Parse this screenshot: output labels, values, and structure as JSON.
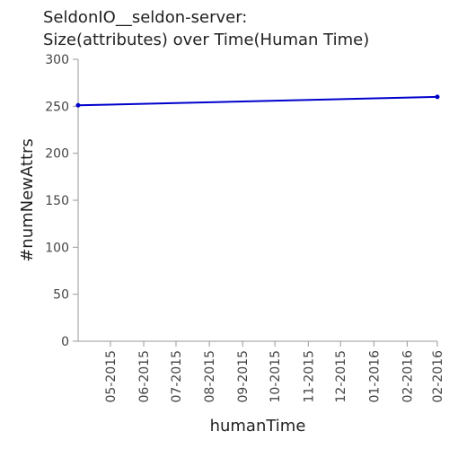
{
  "chart_data": {
    "type": "line",
    "title_lines": [
      "SeldonIO__seldon-server:",
      "Size(attributes) over Time(Human Time)"
    ],
    "xlabel": "humanTime",
    "ylabel": "#numNewAttrs",
    "ylim": [
      0,
      300
    ],
    "yticks": [
      0,
      50,
      100,
      150,
      200,
      250,
      300
    ],
    "xtick_labels": [
      "05-2015",
      "06-2015",
      "07-2015",
      "08-2015",
      "09-2015",
      "10-2015",
      "11-2015",
      "12-2015",
      "01-2016",
      "02-2016",
      "02-2016"
    ],
    "series": [
      {
        "color": "#0000cc",
        "points": [
          {
            "x": "2015-04-01",
            "y": 251
          },
          {
            "x": "2016-02-29",
            "y": 260
          }
        ]
      }
    ]
  }
}
